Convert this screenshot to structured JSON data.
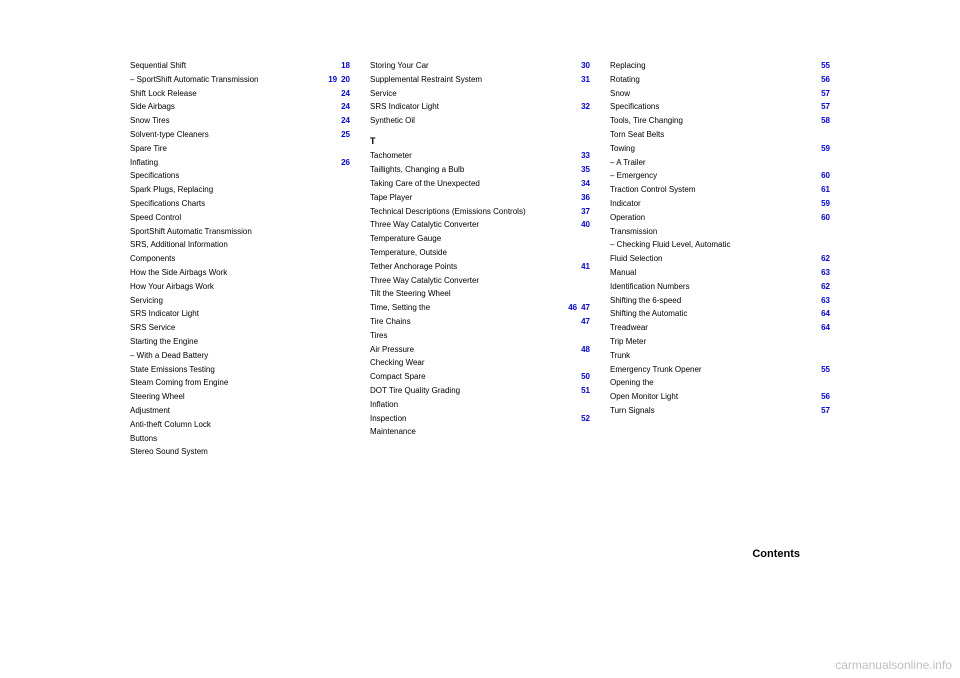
{
  "watermark": "carmanualsonline.info",
  "contents_label": "Contents",
  "columns": [
    {
      "groups": [
        {
          "heading": null,
          "entries": [
            {
              "text": "Sequential Shift",
              "page": "18"
            },
            {
              "text": "– SportShift Automatic Transmission",
              "pages": [
                "19",
                "20"
              ]
            },
            {
              "text": "Shift Lock Release",
              "page": "24"
            },
            {
              "text": "Side Airbags",
              "page": "24"
            },
            {
              "text": "Snow Tires",
              "page": "24"
            },
            {
              "text": "Solvent-type Cleaners",
              "page": "25"
            },
            {
              "text": "Spare Tire",
              "page": ""
            },
            {
              "text": "Inflating",
              "page": "26"
            },
            {
              "text": "Specifications",
              "page": ""
            },
            {
              "text": "Spark Plugs, Replacing",
              "page": ""
            },
            {
              "text": "Specifications Charts",
              "page": ""
            },
            {
              "text": "Speed Control",
              "page": ""
            },
            {
              "text": "SportShift Automatic Transmission",
              "page": ""
            },
            {
              "text": "SRS, Additional Information",
              "page": ""
            },
            {
              "text": "Components",
              "page": ""
            },
            {
              "text": "How the Side Airbags Work",
              "page": ""
            },
            {
              "text": "How Your Airbags Work",
              "page": ""
            },
            {
              "text": "Servicing",
              "page": ""
            },
            {
              "text": "SRS Indicator Light",
              "page": ""
            },
            {
              "text": "SRS Service",
              "page": ""
            },
            {
              "text": "Starting the Engine",
              "page": ""
            },
            {
              "text": "– With a Dead Battery",
              "page": ""
            },
            {
              "text": "State Emissions Testing",
              "page": ""
            },
            {
              "text": "Steam Coming from Engine",
              "page": ""
            },
            {
              "text": "Steering Wheel",
              "page": ""
            },
            {
              "text": "Adjustment",
              "page": ""
            },
            {
              "text": "Anti-theft Column Lock",
              "page": ""
            },
            {
              "text": "Buttons",
              "page": ""
            },
            {
              "text": "Stereo Sound System",
              "page": ""
            }
          ]
        }
      ]
    },
    {
      "groups": [
        {
          "heading": null,
          "entries": [
            {
              "text": "Storing Your Car",
              "page": "30"
            },
            {
              "text": "Supplemental Restraint System",
              "page": "31"
            },
            {
              "text": "Service",
              "page": ""
            },
            {
              "text": "SRS Indicator Light",
              "page": "32"
            },
            {
              "text": "Synthetic Oil",
              "page": ""
            }
          ]
        },
        {
          "heading": "T",
          "entries": [
            {
              "text": "Tachometer",
              "page": "33"
            },
            {
              "text": "Taillights, Changing a Bulb",
              "page": "35"
            },
            {
              "text": "Taking Care of the Unexpected",
              "page": "34"
            },
            {
              "text": "Tape Player",
              "page": "36"
            },
            {
              "text": "Technical Descriptions (Emissions Controls)",
              "page": "37"
            },
            {
              "text": "Three Way Catalytic Converter",
              "page": "40"
            },
            {
              "text": "Temperature Gauge",
              "page": ""
            },
            {
              "text": "Temperature, Outside",
              "page": ""
            },
            {
              "text": "Tether Anchorage Points",
              "page": "41"
            },
            {
              "text": "Three Way Catalytic Converter",
              "page": ""
            },
            {
              "text": "Tilt the Steering Wheel",
              "page": ""
            },
            {
              "text": "Time, Setting the",
              "pages": [
                "46",
                "47"
              ]
            },
            {
              "text": "Tire Chains",
              "page": "47"
            },
            {
              "text": "Tires",
              "page": ""
            },
            {
              "text": "Air Pressure",
              "page": "48"
            },
            {
              "text": "Checking Wear",
              "page": ""
            },
            {
              "text": "Compact Spare",
              "page": "50"
            },
            {
              "text": "DOT Tire Quality Grading",
              "page": "51"
            },
            {
              "text": "Inflation",
              "page": ""
            },
            {
              "text": "Inspection",
              "page": "52"
            },
            {
              "text": "Maintenance",
              "page": ""
            }
          ]
        }
      ]
    },
    {
      "groups": [
        {
          "heading": null,
          "entries": [
            {
              "text": "Replacing",
              "page": "55"
            },
            {
              "text": "Rotating",
              "page": "56"
            },
            {
              "text": "Snow",
              "page": "57"
            },
            {
              "text": "Specifications",
              "page": "57"
            },
            {
              "text": "Tools, Tire Changing",
              "page": "58"
            },
            {
              "text": "Torn Seat Belts",
              "page": ""
            },
            {
              "text": "Towing",
              "page": "59"
            },
            {
              "text": "– A Trailer",
              "page": ""
            },
            {
              "text": "– Emergency",
              "page": "60"
            },
            {
              "text": "Traction Control System",
              "page": "61"
            },
            {
              "text": "Indicator",
              "page": "59"
            },
            {
              "text": "Operation",
              "page": "60"
            },
            {
              "text": "Transmission",
              "page": ""
            },
            {
              "text": "– Checking Fluid Level, Automatic",
              "page": ""
            },
            {
              "text": "Fluid Selection",
              "page": "62"
            },
            {
              "text": "Manual",
              "page": "63"
            },
            {
              "text": "Identification Numbers",
              "page": "62"
            },
            {
              "text": "Shifting the 6-speed",
              "page": "63"
            },
            {
              "text": "Shifting the Automatic",
              "page": "64"
            },
            {
              "text": "Treadwear",
              "page": "64"
            },
            {
              "text": "Trip Meter",
              "page": ""
            },
            {
              "text": "Trunk",
              "page": ""
            },
            {
              "text": "Emergency Trunk Opener",
              "page": "55"
            },
            {
              "text": "Opening the",
              "page": ""
            },
            {
              "text": "Open Monitor Light",
              "page": "56"
            },
            {
              "text": "Turn Signals",
              "page": "57"
            }
          ]
        }
      ]
    }
  ]
}
